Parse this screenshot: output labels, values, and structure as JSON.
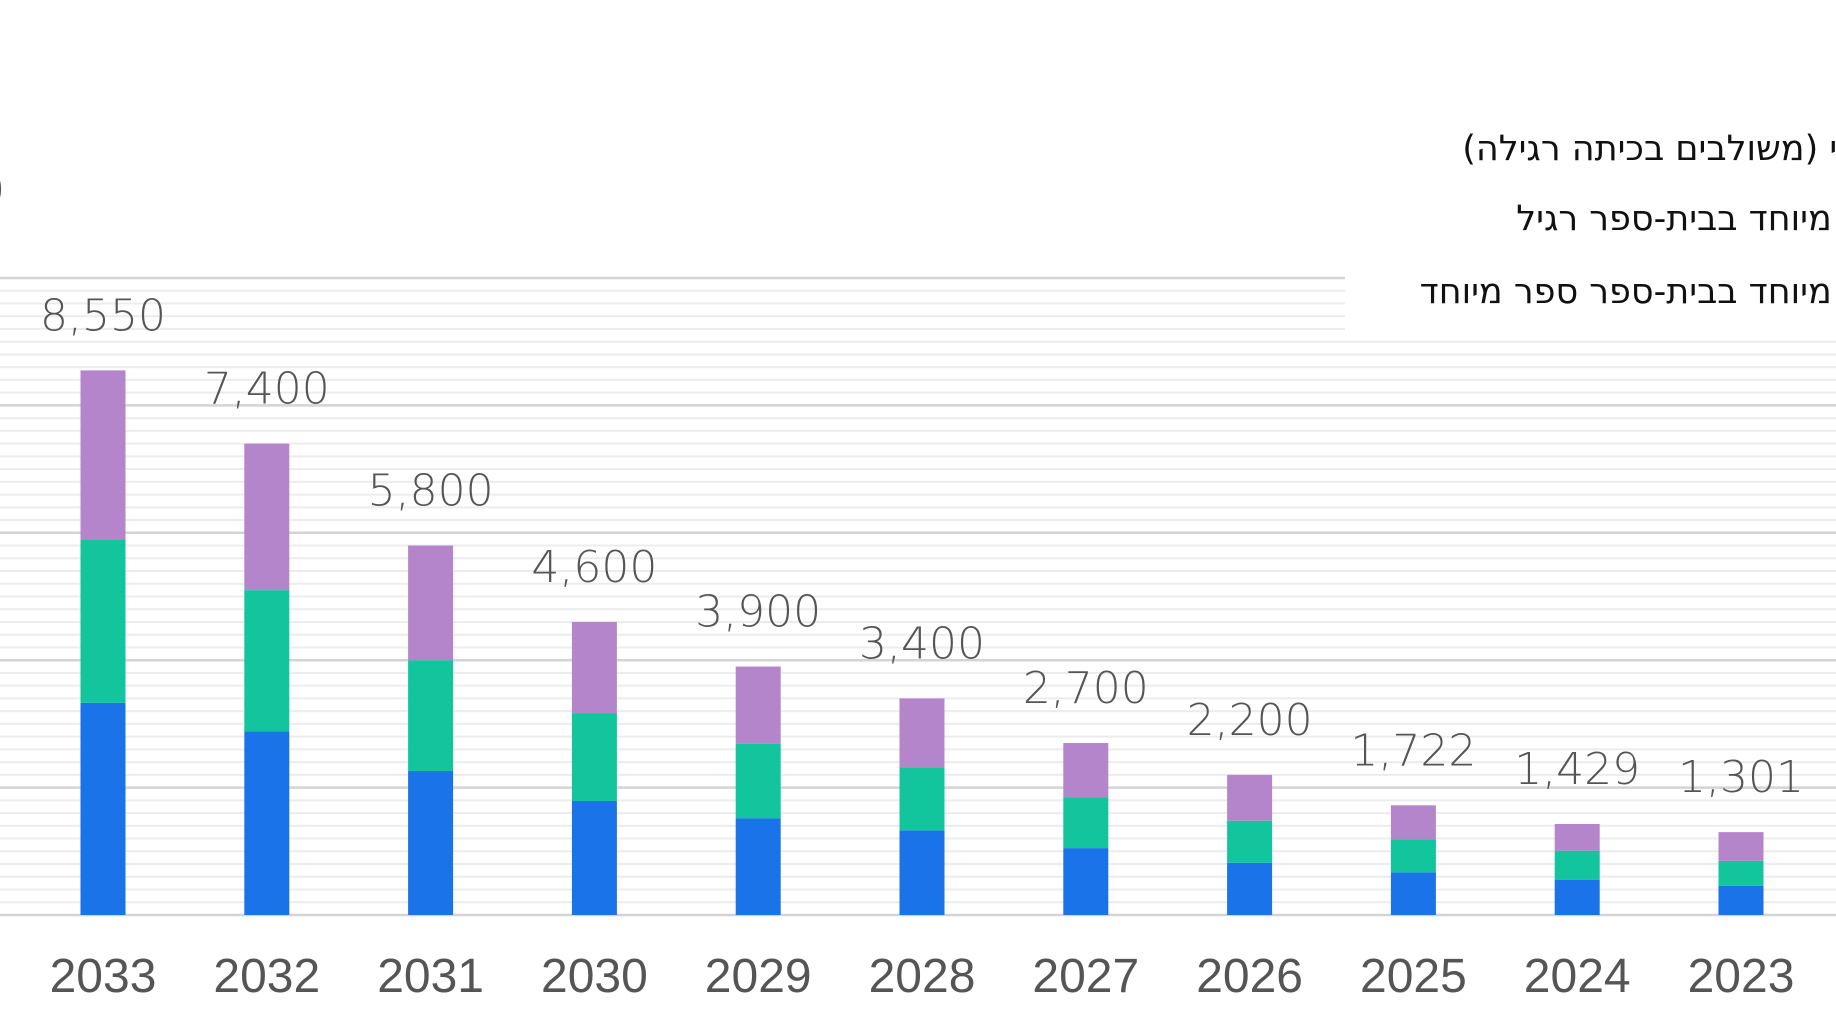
{
  "chart_data": {
    "type": "bar",
    "stacked": true,
    "categories": [
      "2033",
      "2032",
      "2031",
      "2030",
      "2029",
      "2028",
      "2027",
      "2026",
      "2025",
      "2024",
      "2023"
    ],
    "totals": [
      "8,550",
      "7,400",
      "5,800",
      "4,600",
      "3,900",
      "3,400",
      "2,700",
      "2,200",
      "1,722",
      "1,429",
      "1,301"
    ],
    "series": [
      {
        "name": "שי (משולבים בכיתה רגילה)",
        "color": "#1a73e8",
        "values": [
          3330,
          2880,
          2260,
          1790,
          1520,
          1330,
          1050,
          820,
          670,
          550,
          460
        ]
      },
      {
        "name": "ד מיוחד בבית-ספר רגיל",
        "color": "#12c59c",
        "values": [
          2570,
          2220,
          1740,
          1380,
          1170,
          990,
          800,
          660,
          520,
          460,
          390
        ]
      },
      {
        "name": "ד מיוחד בבית-ספר ספר מיוחד",
        "color": "#b485cb",
        "values": [
          2650,
          2300,
          1800,
          1430,
          1210,
          1080,
          850,
          720,
          532,
          419,
          451
        ]
      }
    ],
    "ylim": [
      0,
      10000
    ],
    "grid": true,
    "legend_position": "top-right",
    "edge_label": "0"
  }
}
